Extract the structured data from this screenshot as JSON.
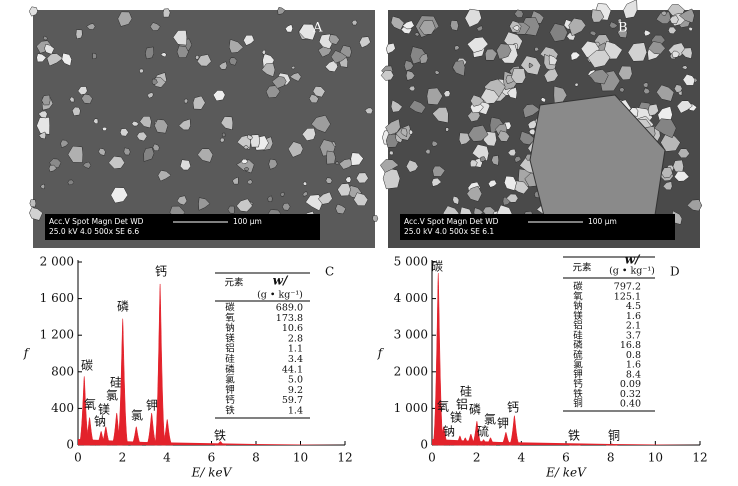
{
  "images": [
    {
      "panel_label": "A",
      "info_line1": "Acc.V  Spot Magn    Det  WD",
      "info_line2": "25.0 kV 4.0    500x     SE   6.6",
      "scale": "100 μm"
    },
    {
      "panel_label": "B",
      "info_line1": "Acc.V  Spot Magn    Det  WD",
      "info_line2": "25.0 kV 4.0    500x     SE   6.1",
      "scale": "100 μm"
    }
  ],
  "chart_data": [
    {
      "type": "spectrum",
      "panel_label": "C",
      "x_label": "E/ keV",
      "y_label": "f",
      "color": "#e3222b",
      "xlim": [
        0,
        12
      ],
      "xticks": [
        0,
        2,
        4,
        6,
        8,
        10,
        12
      ],
      "ylim": [
        0,
        2000
      ],
      "yticks": [
        0,
        400,
        800,
        {
          "value": 1200,
          "label": "1 200"
        },
        {
          "value": 1600,
          "label": "1 600"
        },
        {
          "value": 2000,
          "label": "2 000"
        }
      ],
      "x": [
        0.28,
        0.52,
        1.04,
        1.25,
        1.74,
        2.01,
        2.62,
        3.31,
        3.69,
        4.01,
        6.4
      ],
      "values": [
        750,
        300,
        150,
        200,
        350,
        1380,
        200,
        350,
        1760,
        280,
        40
      ],
      "labels": [
        "碳",
        "氧",
        "钠",
        "镁",
        "硅",
        "磷",
        "氯",
        "钾",
        "钙",
        null,
        "铁"
      ],
      "extra_label": "氯",
      "table": {
        "header": [
          "元素",
          "w/",
          "(g • kg⁻¹)"
        ],
        "rows": [
          [
            "碳",
            "689.0"
          ],
          [
            "氧",
            "173.8"
          ],
          [
            "钠",
            "10.6"
          ],
          [
            "镁",
            "2.8"
          ],
          [
            "铝",
            "1.1"
          ],
          [
            "硅",
            "3.4"
          ],
          [
            "磷",
            "44.1"
          ],
          [
            "氯",
            "5.0"
          ],
          [
            "钾",
            "9.2"
          ],
          [
            "钙",
            "59.7"
          ],
          [
            "铁",
            "1.4"
          ]
        ]
      }
    },
    {
      "type": "spectrum",
      "panel_label": "D",
      "x_label": "E/ keV",
      "y_label": "f",
      "color": "#e3222b",
      "xlim": [
        0,
        12
      ],
      "xticks": [
        0,
        2,
        4,
        6,
        8,
        10,
        12
      ],
      "ylim": [
        0,
        5000
      ],
      "yticks": [
        0,
        {
          "value": 1000,
          "label": "1 000"
        },
        {
          "value": 2000,
          "label": "2 000"
        },
        {
          "value": 3000,
          "label": "3 000"
        },
        {
          "value": 4000,
          "label": "4 000"
        },
        {
          "value": 5000,
          "label": "5 000"
        }
      ],
      "x": [
        0.28,
        0.52,
        1.04,
        1.25,
        1.49,
        1.74,
        2.01,
        2.31,
        2.62,
        3.31,
        3.69,
        6.4,
        8.05
      ],
      "values": [
        4700,
        500,
        100,
        250,
        200,
        300,
        650,
        150,
        200,
        350,
        800,
        30,
        30
      ],
      "labels": [
        "碳",
        "氧",
        "钠",
        "镁",
        "铝",
        "硅",
        "磷",
        "硫",
        "氯",
        "钾",
        "钙",
        "铁",
        "铜"
      ],
      "table": {
        "header": [
          "元素",
          "w/",
          "(g • kg⁻¹)"
        ],
        "rows": [
          [
            "碳",
            "797.2"
          ],
          [
            "氧",
            "125.1"
          ],
          [
            "钠",
            "4.5"
          ],
          [
            "镁",
            "1.6"
          ],
          [
            "铝",
            "2.1"
          ],
          [
            "硅",
            "3.7"
          ],
          [
            "磷",
            "16.8"
          ],
          [
            "硫",
            "0.8"
          ],
          [
            "氯",
            "1.6"
          ],
          [
            "钾",
            "8.4"
          ],
          [
            "钙",
            "0.09"
          ],
          [
            "铁",
            "0.32"
          ],
          [
            "铜",
            "0.40"
          ]
        ]
      }
    }
  ]
}
